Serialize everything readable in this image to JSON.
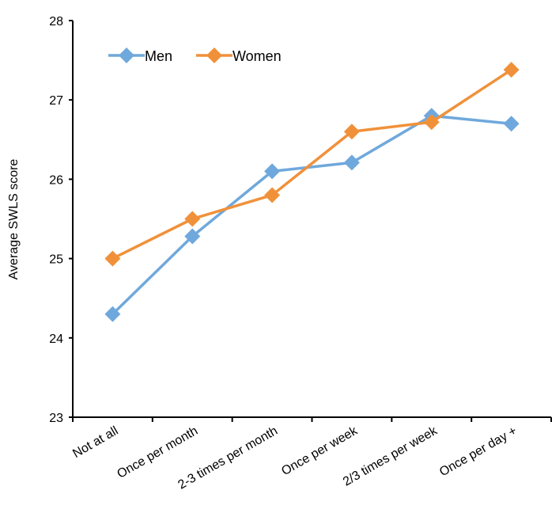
{
  "chart_data": {
    "type": "line",
    "title": "",
    "xlabel": "",
    "ylabel": "Average SWLS score",
    "categories": [
      "Not at all",
      "Once per month",
      "2-3 times per month",
      "Once per week",
      "2/3 times per week",
      "Once per day +"
    ],
    "series": [
      {
        "name": "Men",
        "color": "#6fa8dc",
        "values": [
          24.3,
          25.28,
          26.1,
          26.21,
          26.8,
          26.7
        ]
      },
      {
        "name": "Women",
        "color": "#f0913a",
        "values": [
          25.0,
          25.5,
          25.8,
          26.6,
          26.72,
          27.38
        ]
      }
    ],
    "ylim": [
      23,
      28
    ],
    "yticks": [
      "23",
      "24",
      "25",
      "26",
      "27",
      "28"
    ],
    "grid": false,
    "legend": "top-left",
    "marker": "diamond"
  }
}
